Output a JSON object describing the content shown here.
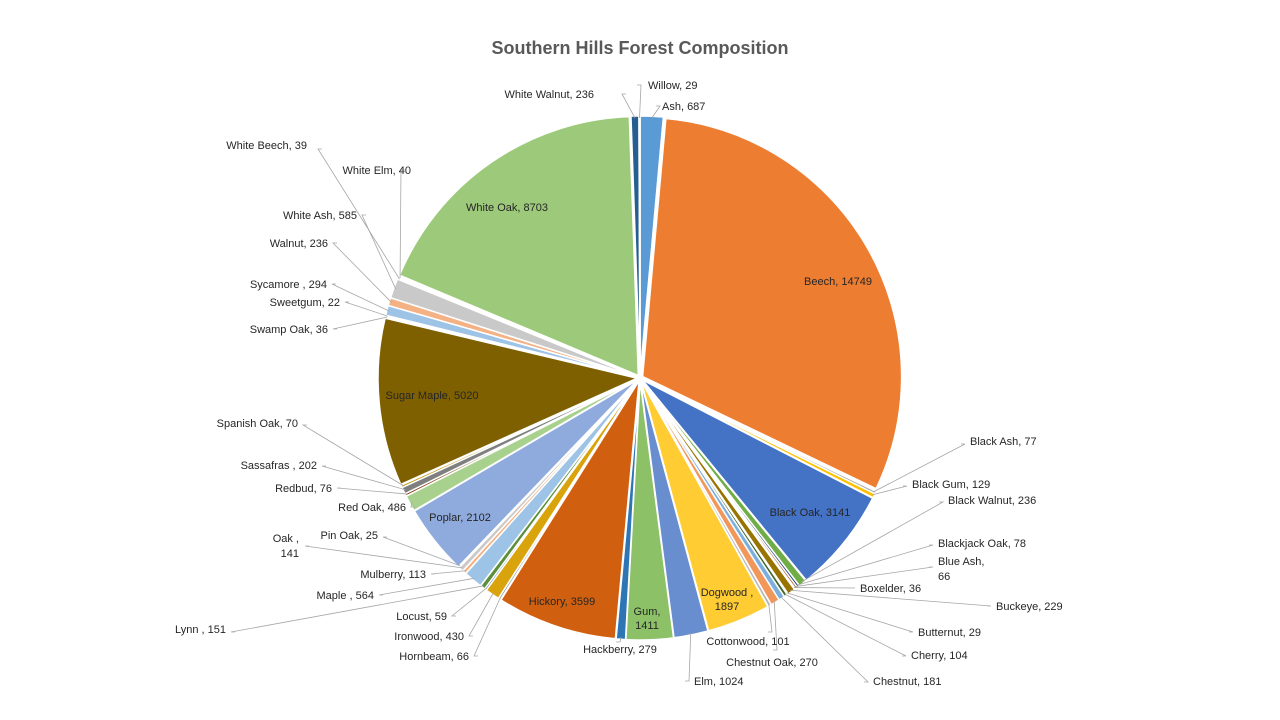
{
  "chart_data": {
    "type": "pie",
    "title": "Southern Hills Forest Composition",
    "slices": [
      {
        "name": "Ash",
        "value": 687,
        "label": "Ash, 687",
        "color": "#5b9bd5"
      },
      {
        "name": "Beech",
        "value": 14749,
        "label": "Beech, 14749",
        "color": "#ed7d31"
      },
      {
        "name": "Black Ash",
        "value": 77,
        "label": "Black Ash, 77",
        "color": "#a5a5a5"
      },
      {
        "name": "Black Gum",
        "value": 129,
        "label": "Black Gum, 129",
        "color": "#ffc000"
      },
      {
        "name": "Black Oak",
        "value": 3141,
        "label": "Black Oak, 3141",
        "color": "#4472c4"
      },
      {
        "name": "Black Walnut",
        "value": 236,
        "label": "Black Walnut, 236",
        "color": "#70ad47"
      },
      {
        "name": "Blackjack Oak",
        "value": 78,
        "label": "Blackjack Oak, 78",
        "color": "#264478"
      },
      {
        "name": "Blue Ash",
        "value": 66,
        "label": "Blue Ash,\n66",
        "color": "#9e480e"
      },
      {
        "name": "Boxelder",
        "value": 36,
        "label": "Boxelder, 36",
        "color": "#636363"
      },
      {
        "name": "Buckeye",
        "value": 229,
        "label": "Buckeye, 229",
        "color": "#997300"
      },
      {
        "name": "Butternut",
        "value": 29,
        "label": "Butternut,  29",
        "color": "#255e91"
      },
      {
        "name": "Cherry",
        "value": 104,
        "label": "Cherry, 104",
        "color": "#43682b"
      },
      {
        "name": "Chestnut",
        "value": 181,
        "label": "Chestnut, 181",
        "color": "#7cafdd"
      },
      {
        "name": "Chestnut  Oak",
        "value": 270,
        "label": "Chestnut  Oak, 270",
        "color": "#f1975a"
      },
      {
        "name": "Cottonwood",
        "value": 101,
        "label": "Cottonwood,  101",
        "color": "#b7b7b7"
      },
      {
        "name": "Dogwood",
        "value": 1897,
        "label": "Dogwood ,\n1897",
        "color": "#ffcd33"
      },
      {
        "name": "Elm",
        "value": 1024,
        "label": "Elm, 1024",
        "color": "#698ed0"
      },
      {
        "name": "Gum",
        "value": 1411,
        "label": "Gum,\n1411",
        "color": "#8cc168"
      },
      {
        "name": "Hackberry",
        "value": 279,
        "label": "Hackberry, 279",
        "color": "#2e75b6"
      },
      {
        "name": "Hickory",
        "value": 3599,
        "label": "Hickory, 3599",
        "color": "#d06010"
      },
      {
        "name": "Hornbeam",
        "value": 66,
        "label": "Hornbeam, 66",
        "color": "#8a8a8a"
      },
      {
        "name": "Ironwood",
        "value": 430,
        "label": "Ironwood, 430",
        "color": "#d9a30b"
      },
      {
        "name": "Locust",
        "value": 59,
        "label": "Locust, 59",
        "color": "#3a64ad"
      },
      {
        "name": "Lynn",
        "value": 151,
        "label": "Lynn , 151",
        "color": "#5c8f3a"
      },
      {
        "name": "Maple",
        "value": 564,
        "label": "Maple , 564",
        "color": "#9dc3e6"
      },
      {
        "name": "Mulberry",
        "value": 113,
        "label": "Mulberry, 113",
        "color": "#f4b183"
      },
      {
        "name": "Oak",
        "value": 141,
        "label": "Oak ,\n141",
        "color": "#c9c9c9"
      },
      {
        "name": "Pin Oak",
        "value": 25,
        "label": "Pin Oak, 25",
        "color": "#ffd966"
      },
      {
        "name": "Poplar",
        "value": 2102,
        "label": "Poplar,  2102",
        "color": "#8faadc"
      },
      {
        "name": "Red Oak",
        "value": 486,
        "label": "Red Oak, 486",
        "color": "#a9d18e"
      },
      {
        "name": "Redbud",
        "value": 76,
        "label": "Redbud, 76",
        "color": "#843c0c"
      },
      {
        "name": "Sassafras",
        "value": 202,
        "label": "Sassafras , 202",
        "color": "#7f7f7f"
      },
      {
        "name": "Spanish Oak",
        "value": 70,
        "label": "Spanish Oak, 70",
        "color": "#bf9000"
      },
      {
        "name": "Sugar Maple",
        "value": 5020,
        "label": "Sugar Maple, 5020",
        "color": "#7f6000"
      },
      {
        "name": "Swamp Oak",
        "value": 36,
        "label": "Swamp Oak, 36",
        "color": "#203864"
      },
      {
        "name": "Sweetgum",
        "value": 22,
        "label": "Sweetgum, 22",
        "color": "#385723"
      },
      {
        "name": "Sycamore",
        "value": 294,
        "label": "Sycamore , 294",
        "color": "#9dc3e6"
      },
      {
        "name": "Walnut",
        "value": 236,
        "label": "Walnut, 236",
        "color": "#f4b183"
      },
      {
        "name": "White Ash",
        "value": 585,
        "label": "White Ash, 585",
        "color": "#c9c9c9"
      },
      {
        "name": "White Beech",
        "value": 39,
        "label": "White Beech, 39",
        "color": "#ffd966"
      },
      {
        "name": "White Elm",
        "value": 40,
        "label": "White Elm, 40",
        "color": "#8faadc"
      },
      {
        "name": "White Oak",
        "value": 8703,
        "label": "White Oak, 8703",
        "color": "#9dc97a"
      },
      {
        "name": "White Walnut",
        "value": 236,
        "label": "White Walnut, 236",
        "color": "#255e91"
      },
      {
        "name": "Willow",
        "value": 29,
        "label": "Willow, 29",
        "color": "#43682b"
      }
    ]
  }
}
